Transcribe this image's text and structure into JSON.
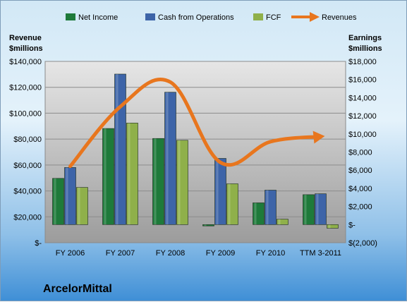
{
  "company_name": "ArcelorMittal",
  "chart_data": {
    "type": "bar",
    "categories": [
      "FY 2006",
      "FY 2007",
      "FY 2008",
      "FY 2009",
      "FY 2010",
      "TTM 3-2011"
    ],
    "series": [
      {
        "name": "Net Income",
        "axis": "right",
        "values": [
          5100,
          10600,
          9500,
          -150,
          2400,
          3300
        ],
        "color": "#1e7a3a"
      },
      {
        "name": "Cash from Operations",
        "axis": "right",
        "values": [
          6300,
          16600,
          14600,
          7300,
          3800,
          3400
        ],
        "color": "#3d64a8"
      },
      {
        "name": "FCF",
        "axis": "right",
        "values": [
          4100,
          11200,
          9300,
          4500,
          600,
          -400
        ],
        "color": "#8fb04a"
      },
      {
        "name": "Revenues",
        "axis": "left",
        "type": "line",
        "values": [
          59000,
          105000,
          124000,
          62000,
          78000,
          82000
        ],
        "color": "#e8761e"
      }
    ],
    "left_axis": {
      "title_lines": [
        "Revenue",
        "$millions"
      ],
      "ylim": [
        0,
        140000
      ],
      "tick_values": [
        0,
        20000,
        40000,
        60000,
        80000,
        100000,
        120000,
        140000
      ],
      "tick_labels": [
        "$-",
        "$20,000",
        "$40,000",
        "$60,000",
        "$80,000",
        "$100,000",
        "$120,000",
        "$140,000"
      ]
    },
    "right_axis": {
      "title_lines": [
        "Earnings",
        "$millions"
      ],
      "ylim": [
        -2000,
        18000
      ],
      "tick_values": [
        -2000,
        0,
        2000,
        4000,
        6000,
        8000,
        10000,
        12000,
        14000,
        16000,
        18000
      ],
      "tick_labels": [
        "$(2,000)",
        "$-",
        "$2,000",
        "$4,000",
        "$6,000",
        "$8,000",
        "$10,000",
        "$12,000",
        "$14,000",
        "$16,000",
        "$18,000"
      ]
    },
    "legend_position": "top",
    "grid": true
  }
}
